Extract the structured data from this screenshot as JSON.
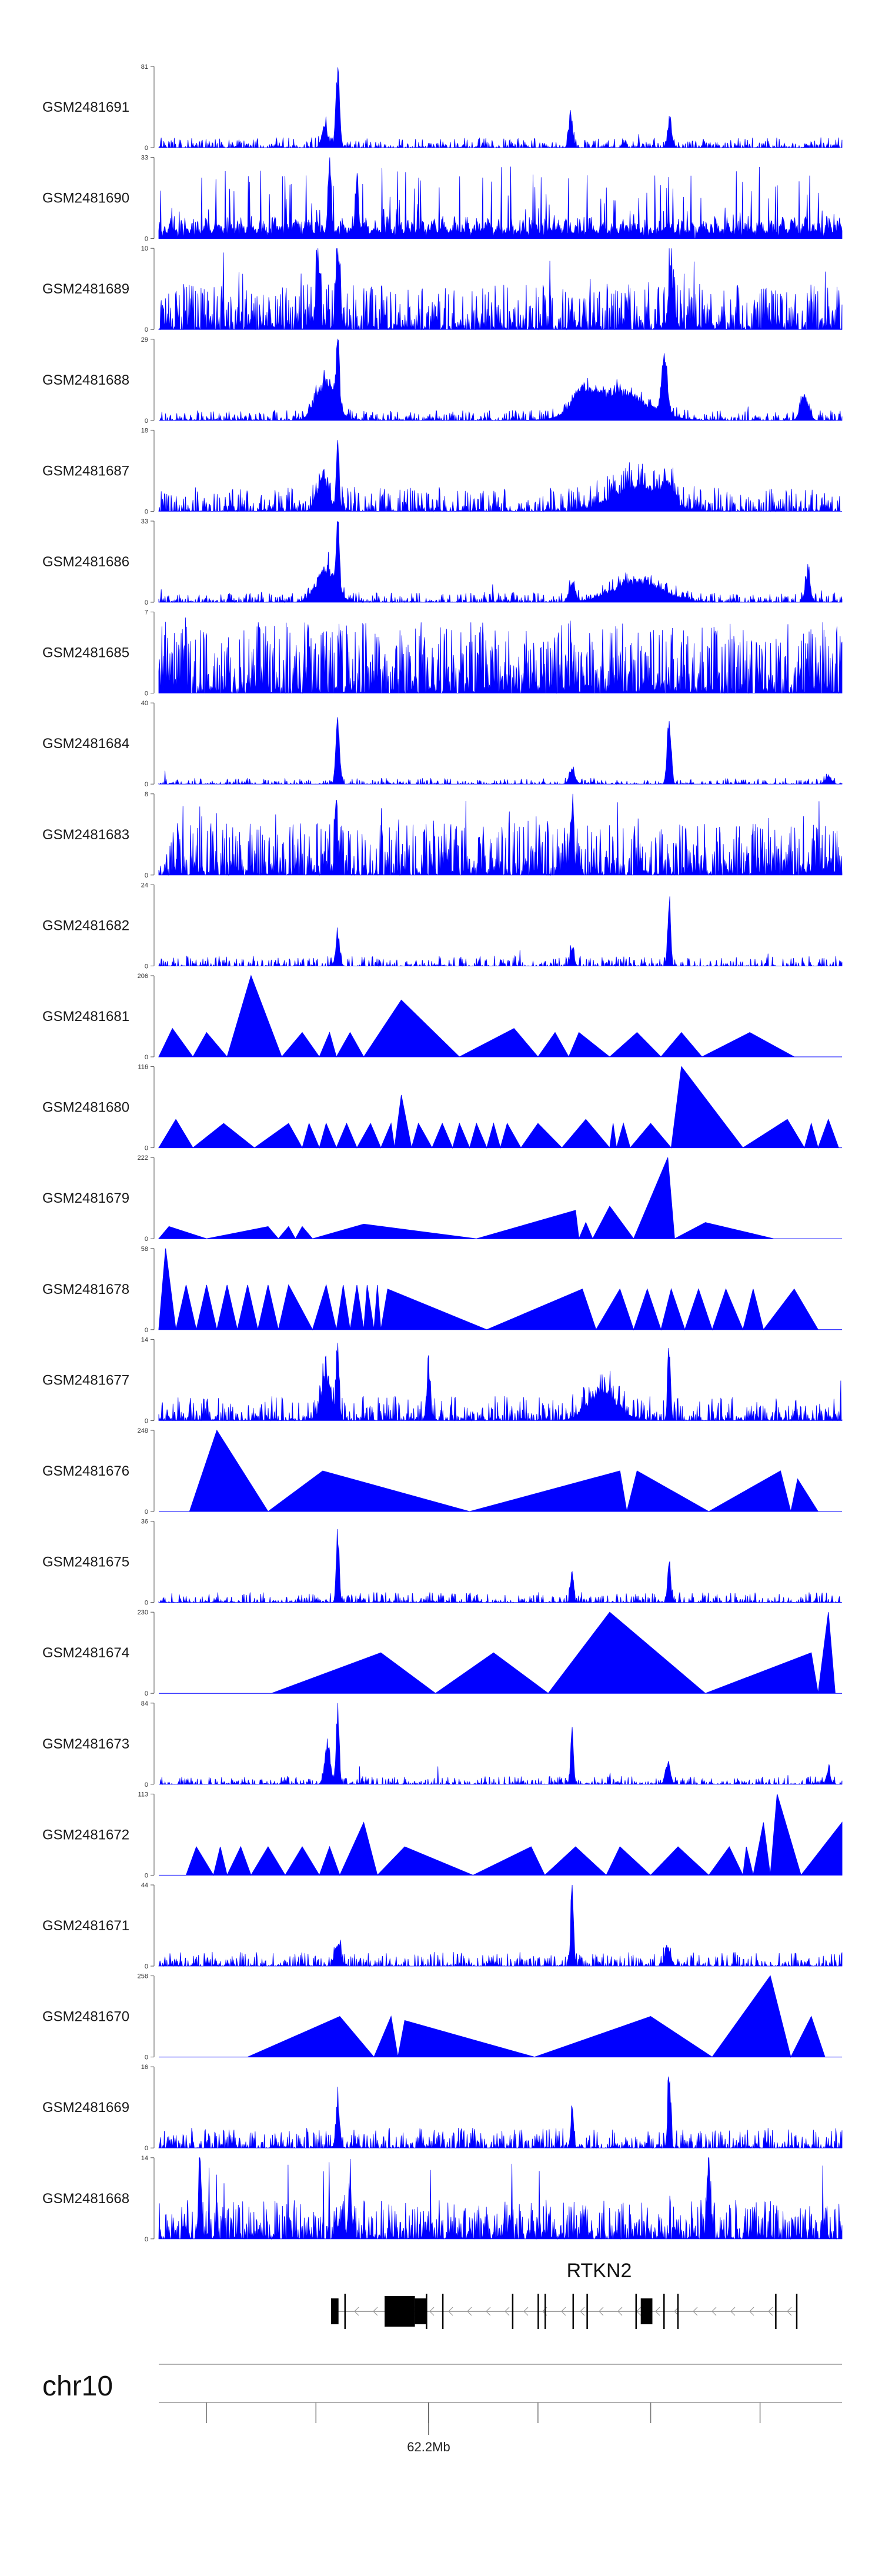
{
  "chart_data": {
    "type": "area",
    "title": "",
    "chromosome": "chr10",
    "position_label": "62.2Mb",
    "gene": {
      "name": "RTKN2",
      "strand": "-",
      "exons_rel": [
        [
          0.0,
          0.016
        ],
        [
          0.115,
          0.18
        ],
        [
          0.18,
          0.205
        ],
        [
          0.665,
          0.69
        ]
      ],
      "exon_lines_rel": [
        0.03,
        0.205,
        0.24,
        0.39,
        0.445,
        0.46,
        0.52,
        0.55,
        0.655,
        0.715,
        0.745,
        0.955,
        1.0
      ]
    },
    "color": "#0000ff",
    "tracks": [
      {
        "name": "GSM2481691",
        "ymax": 81,
        "style": "peaks",
        "density": 0.7,
        "base": 0.05,
        "peaks": [
          [
            0.262,
            1.0,
            0.004
          ],
          [
            0.243,
            0.3,
            0.006
          ],
          [
            0.603,
            0.45,
            0.004
          ],
          [
            0.748,
            0.4,
            0.004
          ]
        ]
      },
      {
        "name": "GSM2481690",
        "ymax": 33,
        "style": "mixed",
        "density": 0.55,
        "base": 0.3,
        "peaks": [
          [
            0.25,
            1.0,
            0.003
          ],
          [
            0.29,
            0.8,
            0.003
          ]
        ]
      },
      {
        "name": "GSM2481689",
        "ymax": 10,
        "style": "noise",
        "density": 0.85,
        "base": 0.35,
        "peaks": [
          [
            0.262,
            0.95,
            0.004
          ],
          [
            0.233,
            0.85,
            0.004
          ],
          [
            0.75,
            0.7,
            0.006
          ]
        ]
      },
      {
        "name": "GSM2481688",
        "ymax": 29,
        "style": "peaks",
        "density": 0.75,
        "base": 0.05,
        "peaks": [
          [
            0.262,
            0.9,
            0.003
          ],
          [
            0.245,
            0.55,
            0.02
          ],
          [
            0.67,
            0.4,
            0.06
          ],
          [
            0.74,
            0.75,
            0.006
          ],
          [
            0.62,
            0.25,
            0.02
          ],
          [
            0.945,
            0.35,
            0.008
          ]
        ]
      },
      {
        "name": "GSM2481687",
        "ymax": 18,
        "style": "peaks",
        "density": 0.85,
        "base": 0.12,
        "peaks": [
          [
            0.262,
            0.95,
            0.003
          ],
          [
            0.24,
            0.45,
            0.012
          ],
          [
            0.7,
            0.35,
            0.05
          ],
          [
            0.745,
            0.3,
            0.01
          ]
        ]
      },
      {
        "name": "GSM2481686",
        "ymax": 33,
        "style": "peaks",
        "density": 0.75,
        "base": 0.05,
        "peaks": [
          [
            0.262,
            0.95,
            0.003
          ],
          [
            0.245,
            0.45,
            0.02
          ],
          [
            0.7,
            0.3,
            0.05
          ],
          [
            0.605,
            0.25,
            0.006
          ],
          [
            0.95,
            0.4,
            0.005
          ]
        ]
      },
      {
        "name": "GSM2481685",
        "ymax": 7,
        "style": "noise",
        "density": 0.9,
        "base": 0.55,
        "peaks": []
      },
      {
        "name": "GSM2481684",
        "ymax": 40,
        "style": "peaks",
        "density": 0.6,
        "base": 0.03,
        "peaks": [
          [
            0.262,
            0.85,
            0.004
          ],
          [
            0.747,
            0.95,
            0.004
          ],
          [
            0.605,
            0.2,
            0.006
          ],
          [
            0.98,
            0.12,
            0.006
          ]
        ]
      },
      {
        "name": "GSM2481683",
        "ymax": 8,
        "style": "noise",
        "density": 0.85,
        "base": 0.4,
        "peaks": [
          [
            0.605,
            1.0,
            0.003
          ],
          [
            0.26,
            0.85,
            0.003
          ]
        ]
      },
      {
        "name": "GSM2481682",
        "ymax": 24,
        "style": "peaks",
        "density": 0.6,
        "base": 0.05,
        "peaks": [
          [
            0.747,
            0.95,
            0.003
          ],
          [
            0.262,
            0.45,
            0.004
          ],
          [
            0.605,
            0.25,
            0.004
          ]
        ]
      },
      {
        "name": "GSM2481681",
        "ymax": 206,
        "style": "triangles",
        "tri": [
          [
            0.0,
            0.02,
            0.05,
            0.35
          ],
          [
            0.05,
            0.07,
            0.1,
            0.3
          ],
          [
            0.1,
            0.135,
            0.18,
            1.0
          ],
          [
            0.18,
            0.21,
            0.235,
            0.3
          ],
          [
            0.235,
            0.25,
            0.26,
            0.3
          ],
          [
            0.26,
            0.28,
            0.3,
            0.3
          ],
          [
            0.3,
            0.355,
            0.44,
            0.7
          ],
          [
            0.44,
            0.52,
            0.555,
            0.35
          ],
          [
            0.555,
            0.58,
            0.6,
            0.3
          ],
          [
            0.6,
            0.615,
            0.66,
            0.3
          ],
          [
            0.66,
            0.7,
            0.735,
            0.3
          ],
          [
            0.735,
            0.765,
            0.795,
            0.3
          ],
          [
            0.795,
            0.865,
            0.93,
            0.3
          ]
        ]
      },
      {
        "name": "GSM2481680",
        "ymax": 116,
        "style": "triangles",
        "tri": [
          [
            0.0,
            0.025,
            0.05,
            0.35
          ],
          [
            0.05,
            0.095,
            0.14,
            0.3
          ],
          [
            0.14,
            0.19,
            0.21,
            0.3
          ],
          [
            0.21,
            0.22,
            0.235,
            0.3
          ],
          [
            0.235,
            0.245,
            0.26,
            0.3
          ],
          [
            0.26,
            0.275,
            0.29,
            0.3
          ],
          [
            0.29,
            0.31,
            0.325,
            0.3
          ],
          [
            0.325,
            0.34,
            0.345,
            0.3
          ],
          [
            0.345,
            0.355,
            0.37,
            0.65
          ],
          [
            0.37,
            0.38,
            0.4,
            0.3
          ],
          [
            0.4,
            0.415,
            0.43,
            0.3
          ],
          [
            0.43,
            0.44,
            0.455,
            0.3
          ],
          [
            0.455,
            0.465,
            0.48,
            0.3
          ],
          [
            0.48,
            0.49,
            0.5,
            0.3
          ],
          [
            0.5,
            0.51,
            0.53,
            0.3
          ],
          [
            0.53,
            0.555,
            0.59,
            0.3
          ],
          [
            0.59,
            0.625,
            0.66,
            0.35
          ],
          [
            0.66,
            0.665,
            0.67,
            0.3
          ],
          [
            0.67,
            0.68,
            0.69,
            0.3
          ],
          [
            0.69,
            0.72,
            0.75,
            0.3
          ],
          [
            0.75,
            0.765,
            0.855,
            1.0
          ],
          [
            0.855,
            0.92,
            0.945,
            0.35
          ],
          [
            0.945,
            0.955,
            0.965,
            0.3
          ],
          [
            0.965,
            0.98,
            0.995,
            0.35
          ]
        ]
      },
      {
        "name": "GSM2481679",
        "ymax": 222,
        "style": "triangles",
        "tri": [
          [
            0.0,
            0.015,
            0.07,
            0.15
          ],
          [
            0.07,
            0.16,
            0.175,
            0.15
          ],
          [
            0.175,
            0.19,
            0.2,
            0.15
          ],
          [
            0.2,
            0.21,
            0.225,
            0.15
          ],
          [
            0.225,
            0.3,
            0.465,
            0.18
          ],
          [
            0.465,
            0.61,
            0.615,
            0.35
          ],
          [
            0.615,
            0.625,
            0.635,
            0.2
          ],
          [
            0.635,
            0.66,
            0.695,
            0.4
          ],
          [
            0.695,
            0.745,
            0.755,
            1.0
          ],
          [
            0.755,
            0.8,
            0.9,
            0.2
          ]
        ]
      },
      {
        "name": "GSM2481678",
        "ymax": 58,
        "style": "triangles",
        "tri": [
          [
            0.0,
            0.01,
            0.025,
            1.0
          ],
          [
            0.025,
            0.04,
            0.055,
            0.55
          ],
          [
            0.055,
            0.07,
            0.085,
            0.55
          ],
          [
            0.085,
            0.1,
            0.115,
            0.55
          ],
          [
            0.115,
            0.13,
            0.145,
            0.55
          ],
          [
            0.145,
            0.16,
            0.175,
            0.55
          ],
          [
            0.175,
            0.19,
            0.225,
            0.55
          ],
          [
            0.225,
            0.245,
            0.26,
            0.55
          ],
          [
            0.26,
            0.27,
            0.28,
            0.55
          ],
          [
            0.28,
            0.29,
            0.3,
            0.55
          ],
          [
            0.3,
            0.305,
            0.315,
            0.55
          ],
          [
            0.315,
            0.32,
            0.325,
            0.55
          ],
          [
            0.325,
            0.335,
            0.48,
            0.5
          ],
          [
            0.48,
            0.62,
            0.64,
            0.5
          ],
          [
            0.64,
            0.675,
            0.695,
            0.5
          ],
          [
            0.695,
            0.715,
            0.735,
            0.5
          ],
          [
            0.735,
            0.75,
            0.77,
            0.5
          ],
          [
            0.77,
            0.79,
            0.81,
            0.5
          ],
          [
            0.81,
            0.83,
            0.855,
            0.5
          ],
          [
            0.855,
            0.87,
            0.885,
            0.5
          ],
          [
            0.885,
            0.93,
            0.965,
            0.5
          ]
        ]
      },
      {
        "name": "GSM2481677",
        "ymax": 14,
        "style": "peaks",
        "density": 0.85,
        "base": 0.12,
        "peaks": [
          [
            0.747,
            0.95,
            0.003
          ],
          [
            0.262,
            0.85,
            0.003
          ],
          [
            0.245,
            0.6,
            0.01
          ],
          [
            0.395,
            0.75,
            0.003
          ],
          [
            0.65,
            0.4,
            0.03
          ]
        ]
      },
      {
        "name": "GSM2481676",
        "ymax": 248,
        "style": "triangles",
        "tri": [
          [
            0.045,
            0.085,
            0.16,
            1.0
          ],
          [
            0.16,
            0.24,
            0.455,
            0.5
          ],
          [
            0.455,
            0.675,
            0.685,
            0.5
          ],
          [
            0.685,
            0.7,
            0.805,
            0.5
          ],
          [
            0.805,
            0.91,
            0.925,
            0.5
          ],
          [
            0.925,
            0.935,
            0.965,
            0.4
          ]
        ]
      },
      {
        "name": "GSM2481675",
        "ymax": 36,
        "style": "peaks",
        "density": 0.7,
        "base": 0.05,
        "peaks": [
          [
            0.262,
            1.0,
            0.003
          ],
          [
            0.747,
            0.55,
            0.003
          ],
          [
            0.605,
            0.45,
            0.003
          ]
        ]
      },
      {
        "name": "GSM2481674",
        "ymax": 230,
        "style": "triangles",
        "tri": [
          [
            0.165,
            0.325,
            0.405,
            0.5
          ],
          [
            0.405,
            0.49,
            0.57,
            0.5
          ],
          [
            0.57,
            0.66,
            0.8,
            1.0
          ],
          [
            0.8,
            0.955,
            0.965,
            0.5
          ],
          [
            0.965,
            0.98,
            0.99,
            1.0
          ]
        ]
      },
      {
        "name": "GSM2481673",
        "ymax": 84,
        "style": "peaks",
        "density": 0.7,
        "base": 0.04,
        "peaks": [
          [
            0.262,
            1.0,
            0.003
          ],
          [
            0.247,
            0.5,
            0.006
          ],
          [
            0.605,
            0.7,
            0.003
          ],
          [
            0.745,
            0.3,
            0.005
          ],
          [
            0.98,
            0.2,
            0.004
          ]
        ]
      },
      {
        "name": "GSM2481672",
        "ymax": 113,
        "style": "triangles",
        "tri": [
          [
            0.04,
            0.055,
            0.08,
            0.35
          ],
          [
            0.08,
            0.09,
            0.1,
            0.35
          ],
          [
            0.1,
            0.12,
            0.135,
            0.35
          ],
          [
            0.135,
            0.16,
            0.185,
            0.35
          ],
          [
            0.185,
            0.21,
            0.235,
            0.35
          ],
          [
            0.235,
            0.25,
            0.265,
            0.35
          ],
          [
            0.265,
            0.3,
            0.32,
            0.65
          ],
          [
            0.32,
            0.36,
            0.46,
            0.35
          ],
          [
            0.46,
            0.545,
            0.565,
            0.35
          ],
          [
            0.565,
            0.61,
            0.655,
            0.35
          ],
          [
            0.655,
            0.675,
            0.72,
            0.35
          ],
          [
            0.72,
            0.76,
            0.805,
            0.35
          ],
          [
            0.805,
            0.835,
            0.855,
            0.35
          ],
          [
            0.855,
            0.86,
            0.87,
            0.35
          ],
          [
            0.87,
            0.885,
            0.895,
            0.65
          ],
          [
            0.895,
            0.905,
            0.94,
            1.0
          ],
          [
            0.94,
            1.0,
            1.0,
            0.65
          ]
        ]
      },
      {
        "name": "GSM2481671",
        "ymax": 44,
        "style": "peaks",
        "density": 0.75,
        "base": 0.07,
        "peaks": [
          [
            0.605,
            1.0,
            0.003
          ],
          [
            0.745,
            0.25,
            0.006
          ],
          [
            0.262,
            0.3,
            0.006
          ]
        ]
      },
      {
        "name": "GSM2481670",
        "ymax": 258,
        "style": "triangles",
        "tri": [
          [
            0.13,
            0.265,
            0.315,
            0.5
          ],
          [
            0.315,
            0.34,
            0.35,
            0.5
          ],
          [
            0.35,
            0.36,
            0.55,
            0.45
          ],
          [
            0.55,
            0.72,
            0.81,
            0.5
          ],
          [
            0.81,
            0.895,
            0.925,
            1.0
          ],
          [
            0.925,
            0.955,
            0.975,
            0.5
          ]
        ]
      },
      {
        "name": "GSM2481669",
        "ymax": 16,
        "style": "peaks",
        "density": 0.8,
        "base": 0.1,
        "peaks": [
          [
            0.747,
            1.0,
            0.003
          ],
          [
            0.262,
            0.6,
            0.004
          ],
          [
            0.605,
            0.45,
            0.003
          ]
        ]
      },
      {
        "name": "GSM2481668",
        "ymax": 14,
        "style": "noise",
        "density": 0.85,
        "base": 0.3,
        "peaks": [
          [
            0.805,
            1.0,
            0.003
          ],
          [
            0.06,
            0.8,
            0.003
          ],
          [
            0.28,
            0.75,
            0.003
          ]
        ]
      }
    ]
  }
}
